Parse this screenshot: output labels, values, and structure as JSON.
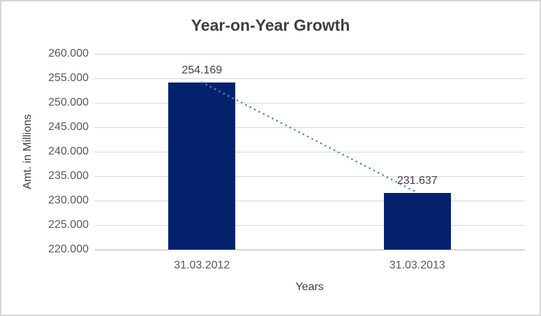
{
  "chart": {
    "title": "Year-on-Year Growth",
    "y_axis_title": "Amt. in Millions",
    "x_axis_title": "Years"
  },
  "chart_data": {
    "type": "bar",
    "title": "Year-on-Year Growth",
    "xlabel": "Years",
    "ylabel": "Amt. in Millions",
    "categories": [
      "31.03.2012",
      "31.03.2013"
    ],
    "values": [
      254.169,
      231.637
    ],
    "data_labels": [
      "254.169",
      "231.637"
    ],
    "ylim": [
      220,
      260
    ],
    "ytick_step": 5,
    "ytick_labels": [
      "220.000",
      "225.000",
      "230.000",
      "235.000",
      "240.000",
      "245.000",
      "250.000",
      "255.000",
      "260.000"
    ],
    "grid": true,
    "legend": "none",
    "trendline": {
      "style": "dotted",
      "points": [
        254.169,
        231.637
      ]
    },
    "colors": {
      "bar": "#04226b",
      "trendline": "#4a87cd",
      "gridline": "#d6d6d6",
      "axis_line": "#b5b5b5",
      "title_text": "#3f3f3f",
      "axis_title_text": "#404040",
      "tick_text": "#595959",
      "data_label_text": "#404040",
      "border": "#d7d7d7",
      "background": "#ffffff"
    }
  }
}
